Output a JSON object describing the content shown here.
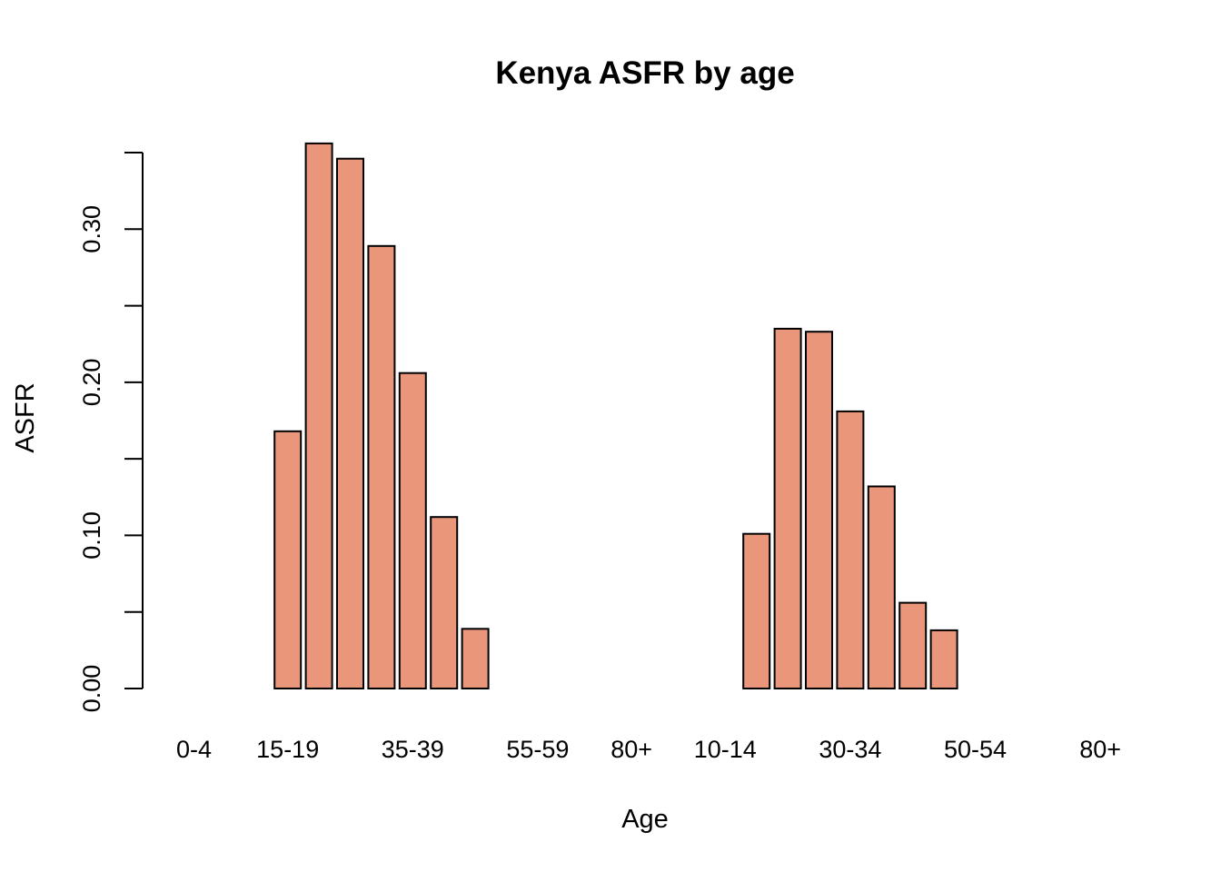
{
  "chart_data": {
    "type": "bar",
    "title": "Kenya ASFR by age",
    "xlabel": "Age",
    "ylabel": "ASFR",
    "bar_color": "#E9967A",
    "border_color": "#000000",
    "ylim": [
      0,
      0.35
    ],
    "yticks": [
      0.0,
      0.05,
      0.1,
      0.15,
      0.2,
      0.25,
      0.3,
      0.35
    ],
    "ytick_labels": [
      "0.00",
      "",
      "0.10",
      "",
      "0.20",
      "",
      "0.30",
      ""
    ],
    "xtick_labels": [
      {
        "index": 0,
        "label": "0-4"
      },
      {
        "index": 3,
        "label": "15-19"
      },
      {
        "index": 7,
        "label": "35-39"
      },
      {
        "index": 11,
        "label": "55-59"
      },
      {
        "index": 14,
        "label": "80+"
      },
      {
        "index": 17,
        "label": "10-14"
      },
      {
        "index": 21,
        "label": "30-34"
      },
      {
        "index": 25,
        "label": "50-54"
      },
      {
        "index": 29,
        "label": "80+"
      }
    ],
    "values": [
      0,
      0,
      0,
      0.168,
      0.356,
      0.346,
      0.289,
      0.206,
      0.112,
      0.039,
      0,
      0,
      0,
      0,
      0,
      0,
      0,
      0,
      0.101,
      0.235,
      0.233,
      0.181,
      0.132,
      0.056,
      0.038,
      0,
      0,
      0,
      0,
      0
    ],
    "grid": false
  }
}
